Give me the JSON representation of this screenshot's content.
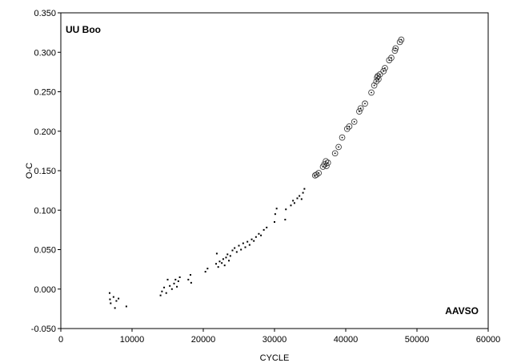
{
  "chart_data": {
    "type": "scatter",
    "xlabel": "CYCLE",
    "ylabel": "O-C",
    "xlim": [
      0,
      60000
    ],
    "ylim": [
      -0.05,
      0.35
    ],
    "x_ticks": [
      "0",
      "10000",
      "20000",
      "30000",
      "40000",
      "50000",
      "60000"
    ],
    "y_ticks": [
      "-0.050",
      "0.000",
      "0.050",
      "0.100",
      "0.150",
      "0.200",
      "0.250",
      "0.300",
      "0.350"
    ],
    "annotations": {
      "top_left": "UU Boo",
      "bottom_right": "AAVSO"
    },
    "grid": false,
    "series": [
      {
        "marker": "dot",
        "points": [
          [
            6850,
            -0.005
          ],
          [
            6900,
            -0.013
          ],
          [
            7000,
            -0.018
          ],
          [
            7400,
            -0.01
          ],
          [
            7600,
            -0.024
          ],
          [
            7800,
            -0.015
          ],
          [
            8100,
            -0.012
          ],
          [
            9200,
            -0.022
          ],
          [
            14000,
            -0.008
          ],
          [
            14200,
            -0.003
          ],
          [
            14500,
            0.002
          ],
          [
            14800,
            -0.005
          ],
          [
            15000,
            0.012
          ],
          [
            15300,
            0.004
          ],
          [
            15600,
            0.0
          ],
          [
            15900,
            0.007
          ],
          [
            16100,
            0.012
          ],
          [
            16300,
            0.003
          ],
          [
            16500,
            0.01
          ],
          [
            16700,
            0.015
          ],
          [
            17900,
            0.012
          ],
          [
            18200,
            0.018
          ],
          [
            18300,
            0.008
          ],
          [
            20300,
            0.022
          ],
          [
            20600,
            0.026
          ],
          [
            21800,
            0.032
          ],
          [
            21900,
            0.045
          ],
          [
            22100,
            0.028
          ],
          [
            22300,
            0.035
          ],
          [
            22600,
            0.033
          ],
          [
            22800,
            0.038
          ],
          [
            23000,
            0.03
          ],
          [
            23200,
            0.04
          ],
          [
            23400,
            0.044
          ],
          [
            23600,
            0.036
          ],
          [
            23800,
            0.042
          ],
          [
            24100,
            0.049
          ],
          [
            24400,
            0.052
          ],
          [
            24700,
            0.047
          ],
          [
            25000,
            0.055
          ],
          [
            25300,
            0.05
          ],
          [
            25600,
            0.058
          ],
          [
            25900,
            0.053
          ],
          [
            26200,
            0.06
          ],
          [
            26500,
            0.056
          ],
          [
            26800,
            0.063
          ],
          [
            27100,
            0.061
          ],
          [
            27400,
            0.066
          ],
          [
            27800,
            0.07
          ],
          [
            28100,
            0.068
          ],
          [
            28500,
            0.075
          ],
          [
            28900,
            0.078
          ],
          [
            30000,
            0.085
          ],
          [
            30100,
            0.095
          ],
          [
            30300,
            0.102
          ],
          [
            31500,
            0.088
          ],
          [
            31600,
            0.101
          ],
          [
            32300,
            0.106
          ],
          [
            32600,
            0.112
          ],
          [
            32800,
            0.109
          ],
          [
            33200,
            0.115
          ],
          [
            33500,
            0.118
          ],
          [
            33800,
            0.114
          ],
          [
            34000,
            0.122
          ],
          [
            34200,
            0.127
          ]
        ]
      },
      {
        "marker": "open-circle-dot",
        "points": [
          [
            35700,
            0.144
          ],
          [
            35900,
            0.145
          ],
          [
            36200,
            0.147
          ],
          [
            36800,
            0.155
          ],
          [
            37000,
            0.158
          ],
          [
            37200,
            0.162
          ],
          [
            37300,
            0.156
          ],
          [
            37500,
            0.16
          ],
          [
            38500,
            0.172
          ],
          [
            39000,
            0.18
          ],
          [
            39500,
            0.192
          ],
          [
            40200,
            0.203
          ],
          [
            40500,
            0.206
          ],
          [
            41200,
            0.212
          ],
          [
            41900,
            0.225
          ],
          [
            42100,
            0.229
          ],
          [
            42700,
            0.235
          ],
          [
            43600,
            0.249
          ],
          [
            44000,
            0.258
          ],
          [
            44300,
            0.263
          ],
          [
            44400,
            0.268
          ],
          [
            44500,
            0.27
          ],
          [
            44600,
            0.266
          ],
          [
            44800,
            0.272
          ],
          [
            45300,
            0.276
          ],
          [
            45500,
            0.28
          ],
          [
            46100,
            0.29
          ],
          [
            46400,
            0.293
          ],
          [
            46900,
            0.302
          ],
          [
            47000,
            0.305
          ],
          [
            47600,
            0.313
          ],
          [
            47800,
            0.316
          ]
        ]
      }
    ]
  }
}
